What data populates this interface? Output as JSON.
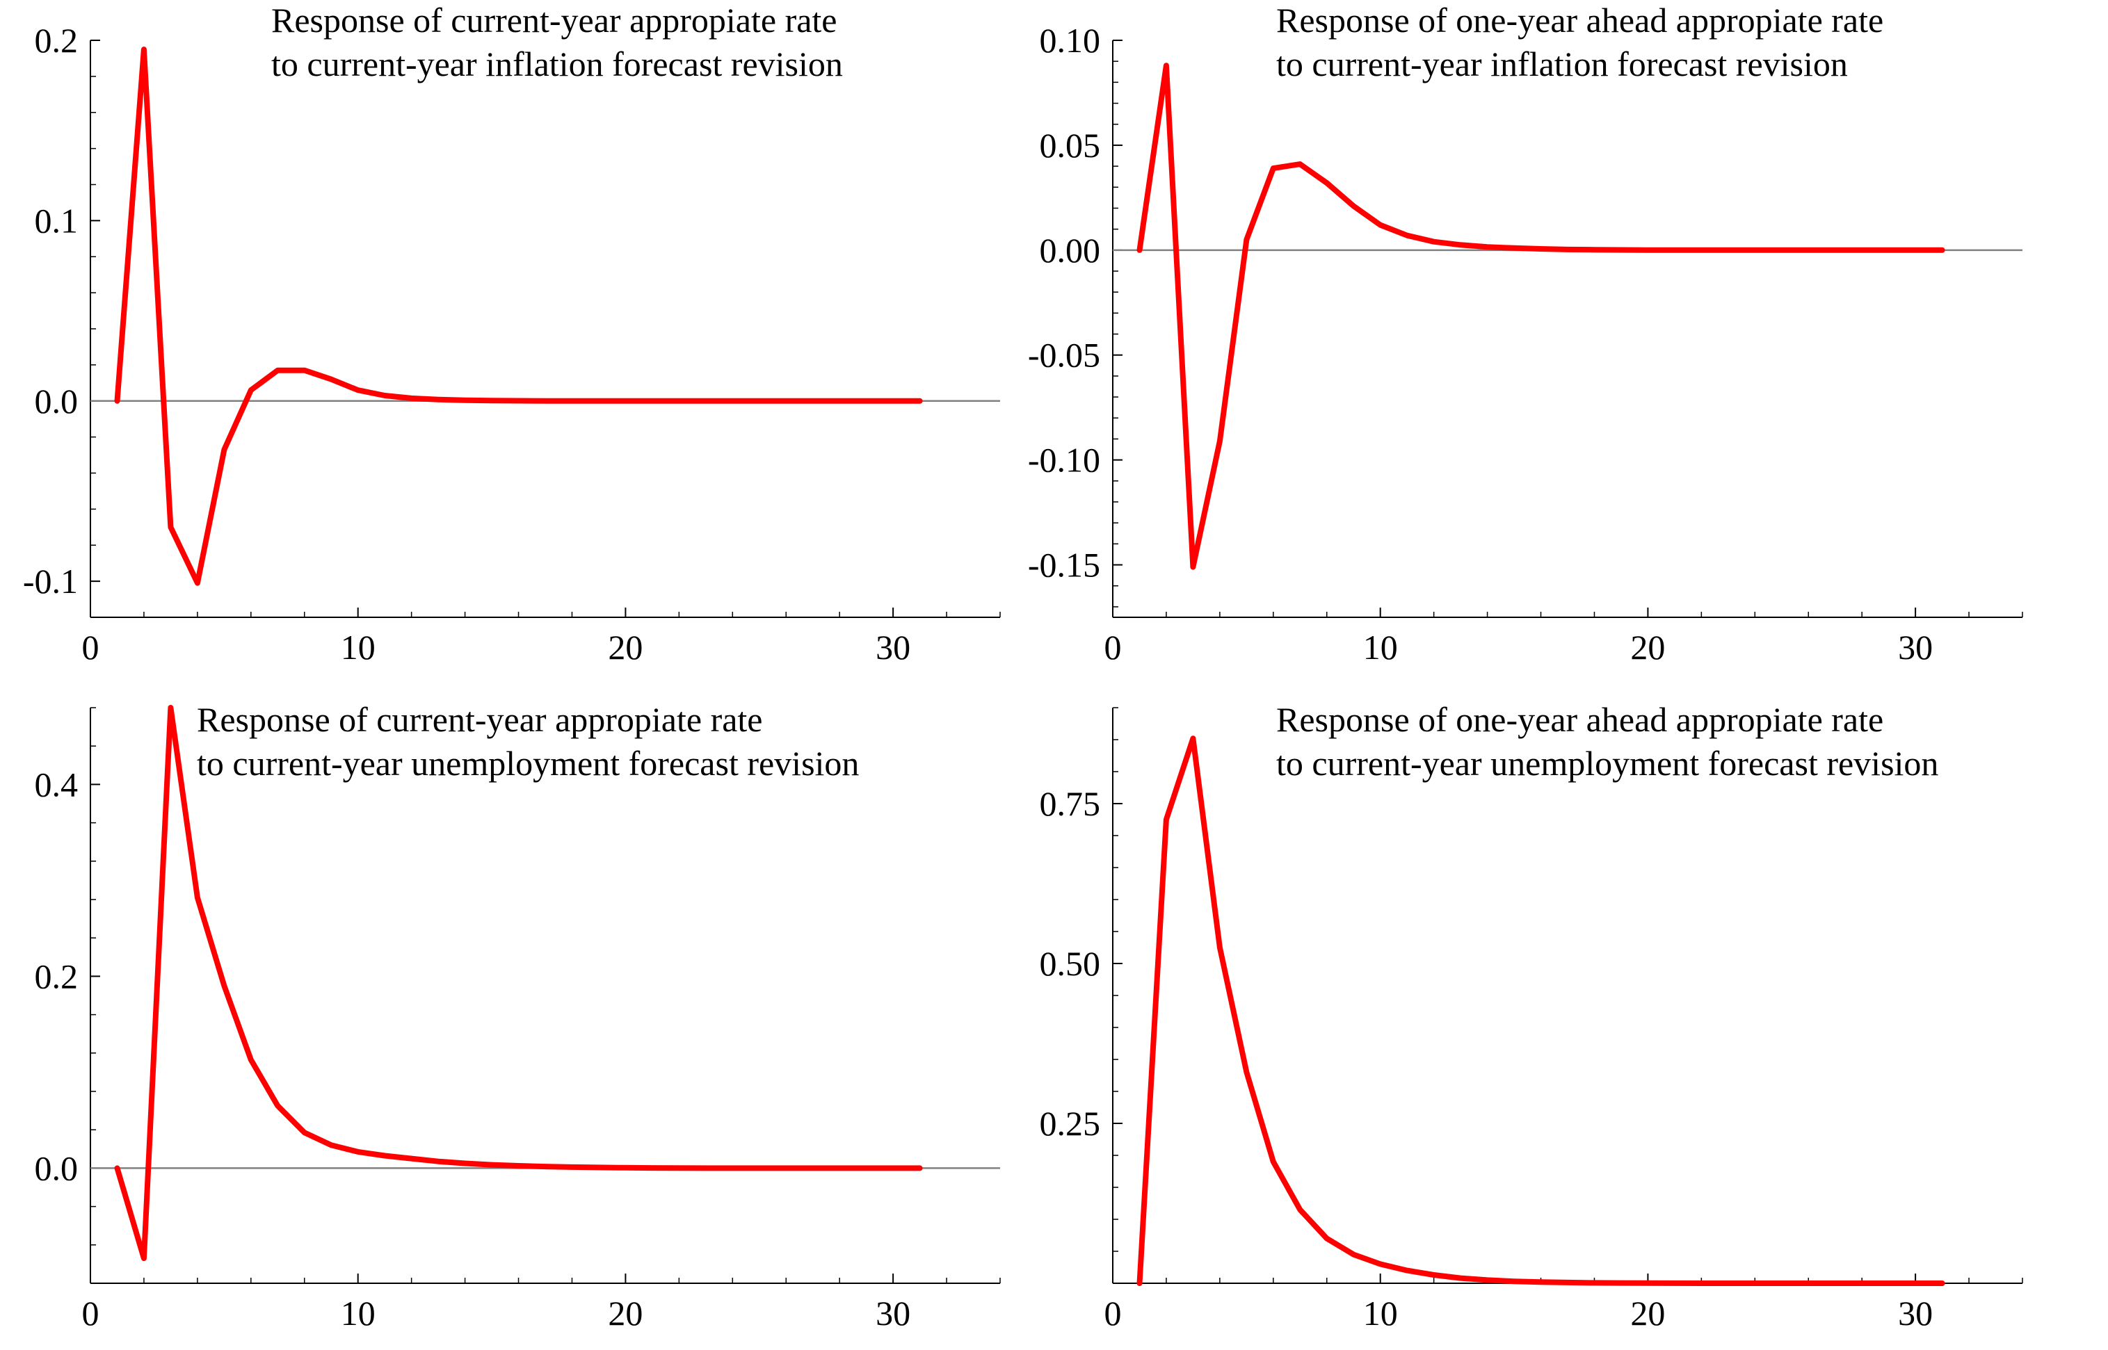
{
  "figure_title": "",
  "chart_data": [
    {
      "type": "line",
      "title_lines": [
        "Response of current-year appropiate rate",
        "to current-year  inflation forecast revision"
      ],
      "xlabel": "",
      "ylabel": "",
      "xlim": [
        0,
        34
      ],
      "ylim": [
        -0.12,
        0.2
      ],
      "xticks": [
        0,
        10,
        20,
        30
      ],
      "yticks": [
        -0.1,
        0.0,
        0.1,
        0.2
      ],
      "ytick_labels": [
        "-0.1",
        "0.0",
        "0.1",
        "0.2"
      ],
      "zero_line": true,
      "series": [
        {
          "name": "response",
          "color": "#ff0000",
          "x": [
            1,
            2,
            3,
            4,
            5,
            6,
            7,
            8,
            9,
            10,
            11,
            12,
            13,
            14,
            15,
            16,
            17,
            18,
            19,
            20,
            21,
            22,
            23,
            24,
            25,
            26,
            27,
            28,
            29,
            30,
            31
          ],
          "y": [
            0,
            0.195,
            -0.07,
            -0.101,
            -0.027,
            0.006,
            0.017,
            0.017,
            0.012,
            0.006,
            0.003,
            0.0015,
            0.0008,
            0.0004,
            0.0002,
            0.0001,
            0,
            0,
            0,
            0,
            0,
            0,
            0,
            0,
            0,
            0,
            0,
            0,
            0,
            0,
            0
          ]
        }
      ]
    },
    {
      "type": "line",
      "title_lines": [
        "Response of one-year ahead appropiate rate",
        "to current-year inflation forecast revision"
      ],
      "xlabel": "",
      "ylabel": "",
      "xlim": [
        0,
        34
      ],
      "ylim": [
        -0.175,
        0.1
      ],
      "xticks": [
        0,
        10,
        20,
        30
      ],
      "yticks": [
        -0.15,
        -0.1,
        -0.05,
        0.0,
        0.05,
        0.1
      ],
      "ytick_labels": [
        "-0.15",
        "-0.10",
        "-0.05",
        "0.00",
        "0.05",
        "0.10"
      ],
      "zero_line": true,
      "series": [
        {
          "name": "response",
          "color": "#ff0000",
          "x": [
            1,
            2,
            3,
            4,
            5,
            6,
            7,
            8,
            9,
            10,
            11,
            12,
            13,
            14,
            15,
            16,
            17,
            18,
            19,
            20,
            21,
            22,
            23,
            24,
            25,
            26,
            27,
            28,
            29,
            30,
            31
          ],
          "y": [
            0,
            0.088,
            -0.151,
            -0.091,
            0.005,
            0.039,
            0.041,
            0.032,
            0.021,
            0.012,
            0.007,
            0.004,
            0.0025,
            0.0015,
            0.001,
            0.0006,
            0.0003,
            0.0002,
            0.0001,
            0,
            0,
            0,
            0,
            0,
            0,
            0,
            0,
            0,
            0,
            0,
            0
          ]
        }
      ]
    },
    {
      "type": "line",
      "title_lines": [
        "Response of current-year appropiate rate",
        "to current-year  unemployment forecast revision"
      ],
      "xlabel": "",
      "ylabel": "",
      "xlim": [
        0,
        34
      ],
      "ylim": [
        -0.12,
        0.48
      ],
      "xticks": [
        0,
        10,
        20,
        30
      ],
      "yticks": [
        0.0,
        0.2,
        0.4
      ],
      "ytick_labels": [
        "0.0",
        "0.2",
        "0.4"
      ],
      "zero_line": true,
      "series": [
        {
          "name": "response",
          "color": "#ff0000",
          "x": [
            1,
            2,
            3,
            4,
            5,
            6,
            7,
            8,
            9,
            10,
            11,
            12,
            13,
            14,
            15,
            16,
            17,
            18,
            19,
            20,
            21,
            22,
            23,
            24,
            25,
            26,
            27,
            28,
            29,
            30,
            31
          ],
          "y": [
            0,
            -0.094,
            0.48,
            0.282,
            0.19,
            0.113,
            0.065,
            0.037,
            0.024,
            0.017,
            0.013,
            0.01,
            0.007,
            0.005,
            0.0035,
            0.0025,
            0.0017,
            0.0011,
            0.0007,
            0.0004,
            0.0002,
            0.0001,
            0,
            0,
            0,
            0,
            0,
            0,
            0,
            0,
            0
          ]
        }
      ]
    },
    {
      "type": "line",
      "title_lines": [
        "Response of one-year ahead appropiate rate",
        "to current-year  unemployment forecast revision"
      ],
      "xlabel": "",
      "ylabel": "",
      "xlim": [
        0,
        34
      ],
      "ylim": [
        0,
        0.9
      ],
      "xticks": [
        0,
        10,
        20,
        30
      ],
      "yticks": [
        0.25,
        0.5,
        0.75
      ],
      "ytick_labels": [
        "0.25",
        "0.50",
        "0.75"
      ],
      "zero_line": false,
      "series": [
        {
          "name": "response",
          "color": "#ff0000",
          "x": [
            1,
            2,
            3,
            4,
            5,
            6,
            7,
            8,
            9,
            10,
            11,
            12,
            13,
            14,
            15,
            16,
            17,
            18,
            19,
            20,
            21,
            22,
            23,
            24,
            25,
            26,
            27,
            28,
            29,
            30,
            31
          ],
          "y": [
            0,
            0.725,
            0.852,
            0.525,
            0.33,
            0.19,
            0.115,
            0.07,
            0.045,
            0.03,
            0.02,
            0.013,
            0.008,
            0.005,
            0.003,
            0.002,
            0.0012,
            0.0007,
            0.0004,
            0.0002,
            0.0001,
            0,
            0,
            0,
            0,
            0,
            0,
            0,
            0,
            0,
            0
          ]
        }
      ]
    }
  ]
}
